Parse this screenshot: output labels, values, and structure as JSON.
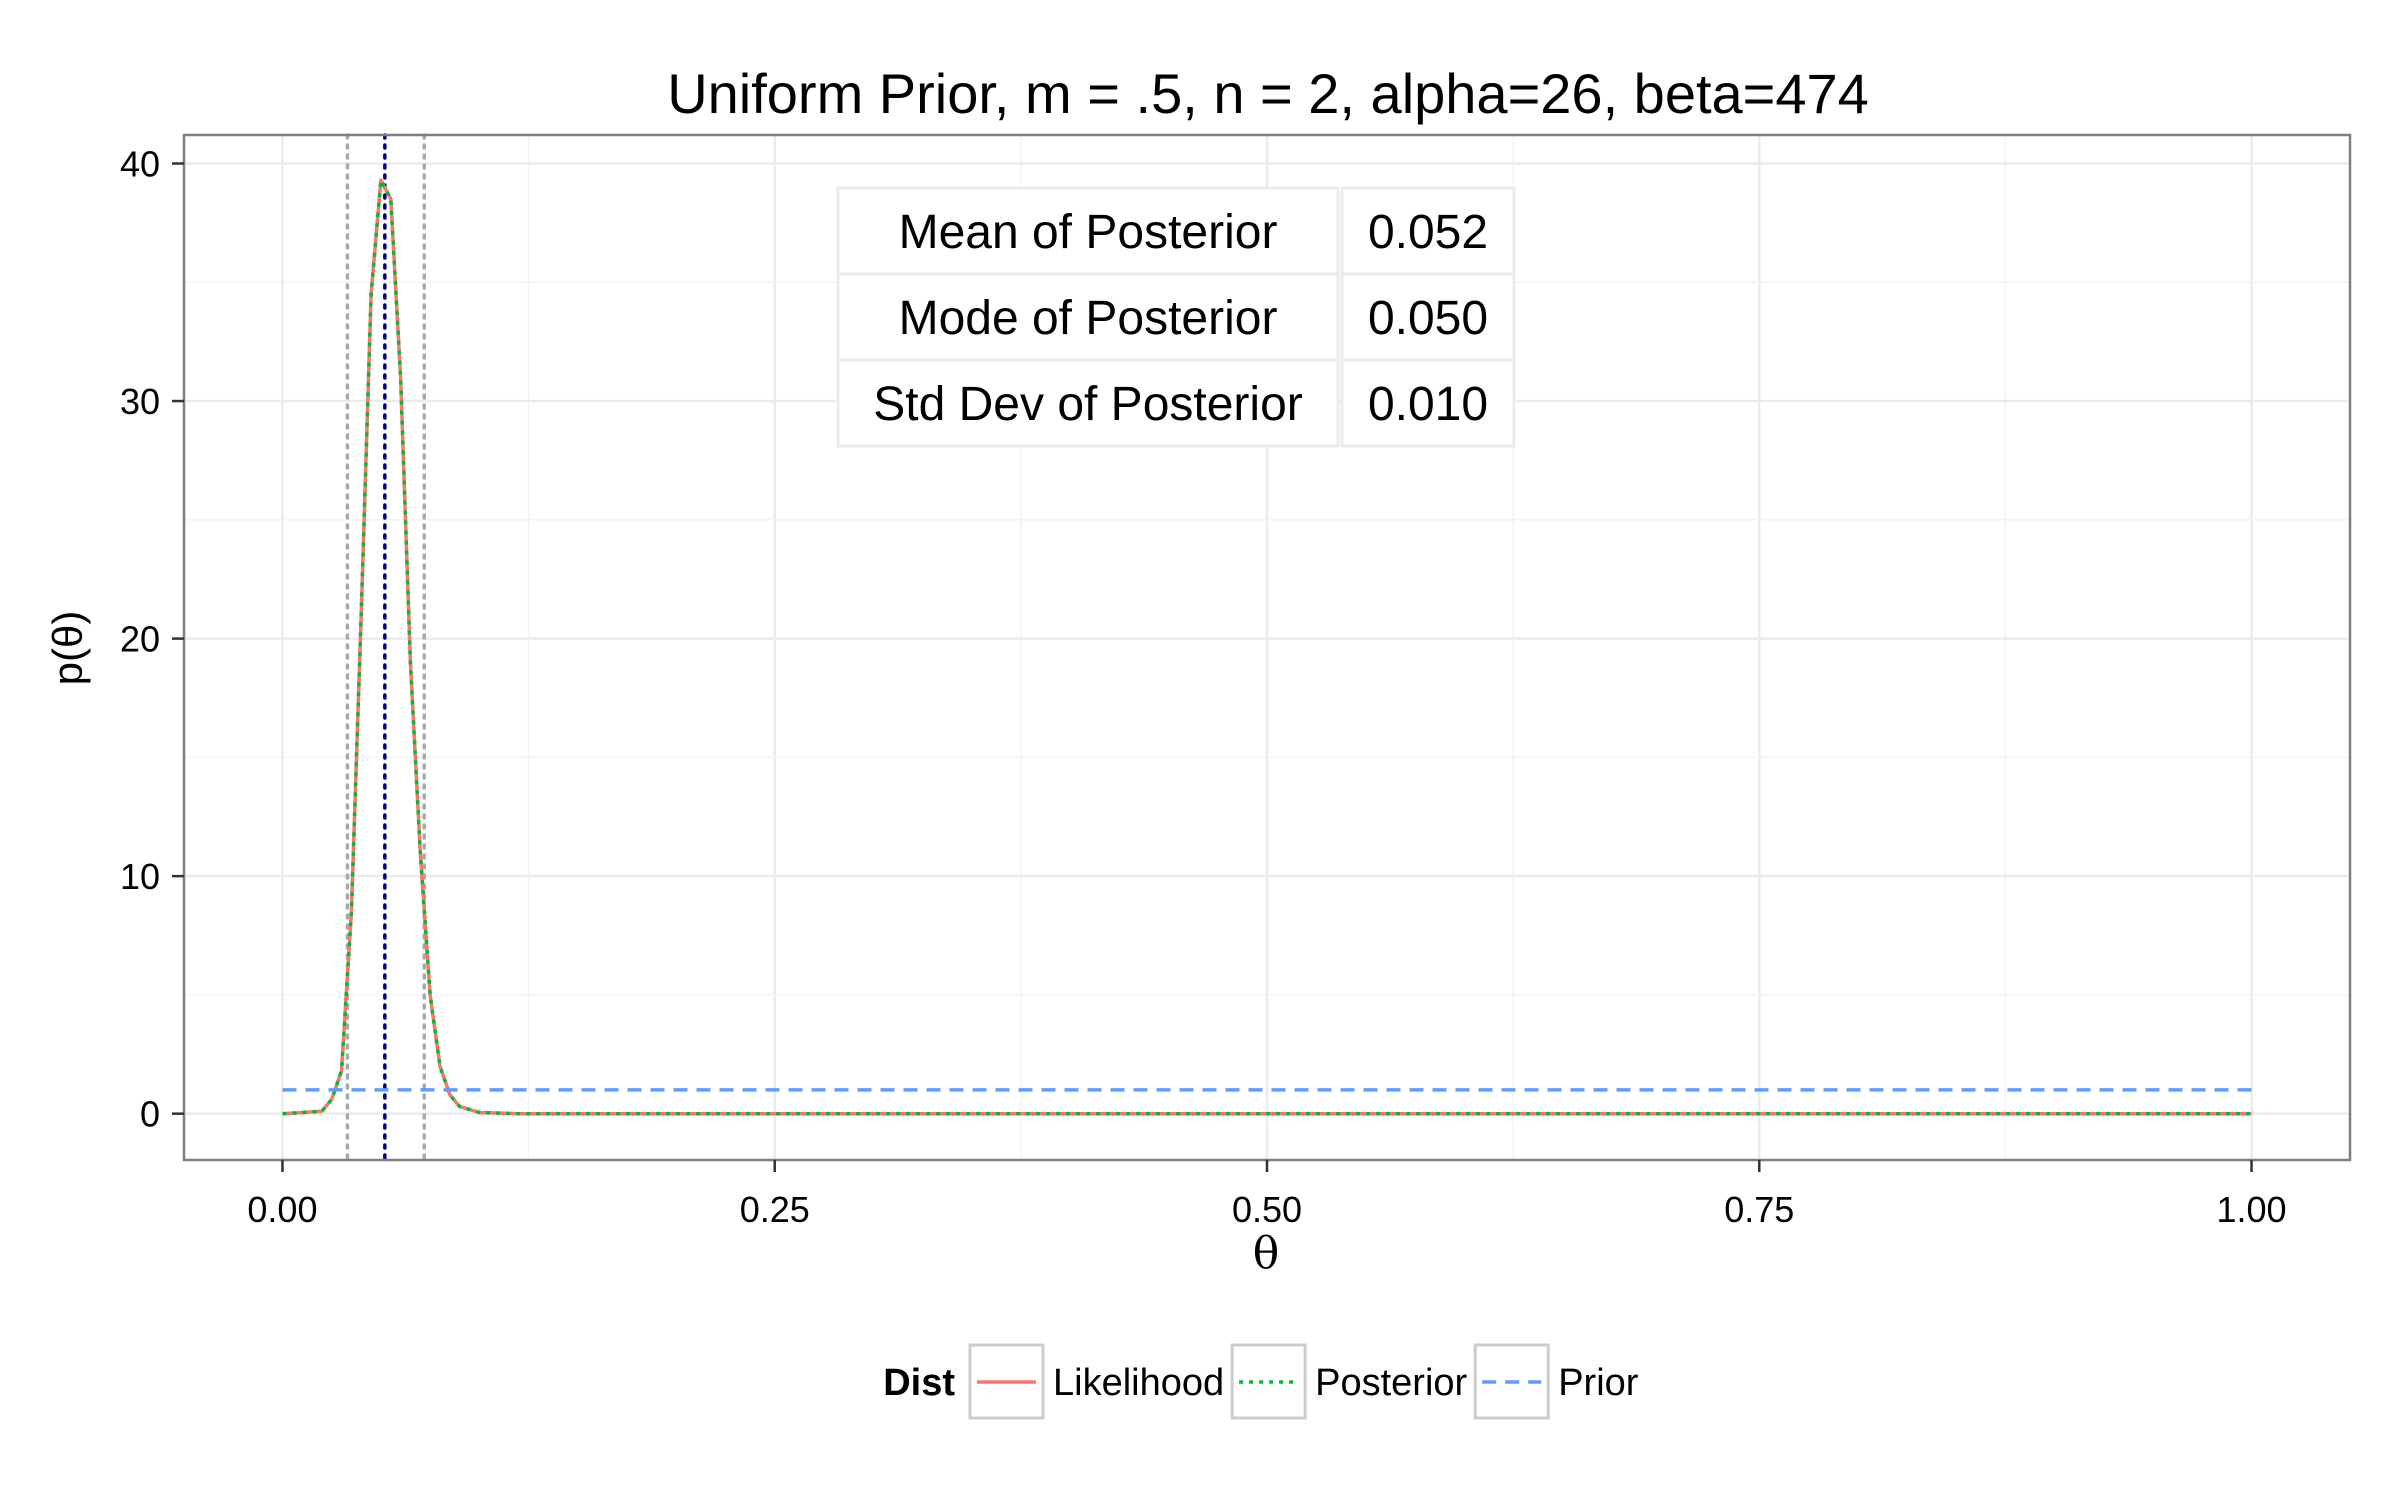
{
  "chart_data": {
    "type": "line",
    "title": "Uniform Prior, m = .5, n = 2, alpha=26, beta=474",
    "xlabel": "θ",
    "ylabel": "p(θ)",
    "xlim": [
      -0.05,
      1.05
    ],
    "ylim": [
      -1.95,
      41.2
    ],
    "x_ticks": [
      0.0,
      0.25,
      0.5,
      0.75,
      1.0
    ],
    "x_tick_labels": [
      "0.00",
      "0.25",
      "0.50",
      "0.75",
      "1.00"
    ],
    "y_ticks": [
      0,
      10,
      20,
      30,
      40
    ],
    "y_tick_labels": [
      "0",
      "10",
      "20",
      "30",
      "40"
    ],
    "grid": true,
    "legend_position": "bottom",
    "legend_title": "Dist",
    "series": [
      {
        "name": "Likelihood",
        "color": "#F8766D",
        "line_style": "solid",
        "x": [
          0.0,
          0.02,
          0.025,
          0.03,
          0.035,
          0.04,
          0.045,
          0.05,
          0.055,
          0.06,
          0.065,
          0.07,
          0.075,
          0.08,
          0.085,
          0.09,
          0.1,
          0.12,
          1.0
        ],
        "y": [
          0.0,
          0.1,
          0.6,
          1.8,
          8.5,
          21.0,
          34.5,
          39.3,
          38.5,
          31.0,
          19.0,
          11.0,
          5.0,
          2.0,
          0.8,
          0.3,
          0.05,
          0.0,
          0.0
        ]
      },
      {
        "name": "Posterior",
        "color": "#00BA38",
        "line_style": "dotted",
        "x": [
          0.0,
          0.02,
          0.025,
          0.03,
          0.035,
          0.04,
          0.045,
          0.05,
          0.055,
          0.06,
          0.065,
          0.07,
          0.075,
          0.08,
          0.085,
          0.09,
          0.1,
          0.12,
          1.0
        ],
        "y": [
          0.0,
          0.1,
          0.6,
          1.8,
          8.5,
          21.0,
          34.5,
          39.3,
          38.5,
          31.0,
          19.0,
          11.0,
          5.0,
          2.0,
          0.8,
          0.3,
          0.05,
          0.0,
          0.0
        ]
      },
      {
        "name": "Prior",
        "color": "#619CFF",
        "line_style": "dashed",
        "x": [
          0.0,
          1.0
        ],
        "y": [
          1.0,
          1.0
        ]
      }
    ],
    "vlines": [
      {
        "x": 0.033,
        "color": "#A9A9A9",
        "style": "dotted"
      },
      {
        "x": 0.052,
        "color": "#000080",
        "style": "dotted"
      },
      {
        "x": 0.072,
        "color": "#A9A9A9",
        "style": "dotted"
      }
    ],
    "stats_table": [
      {
        "label": "Mean of Posterior",
        "value": "0.052"
      },
      {
        "label": "Mode of Posterior",
        "value": "0.050"
      },
      {
        "label": "Std Dev of Posterior",
        "value": "0.010"
      }
    ]
  }
}
